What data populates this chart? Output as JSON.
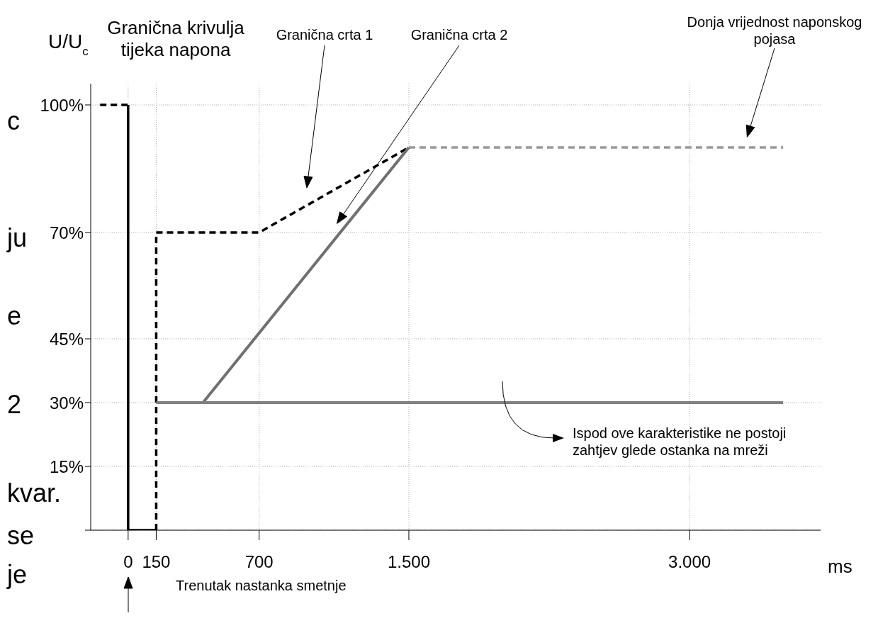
{
  "chart_data": {
    "type": "line",
    "ylabel": "U/U$_{c}$",
    "xlabel": "ms",
    "xlim": [
      -200,
      3700
    ],
    "ylim": [
      0,
      105
    ],
    "xticks": [
      0,
      150,
      700,
      {
        "value": 1500,
        "label": "1.500"
      },
      {
        "value": 3000,
        "label": "3.000"
      }
    ],
    "yticks": [
      {
        "value": 0,
        "label": null
      },
      {
        "value": 15,
        "label": "15%"
      },
      {
        "value": 30,
        "label": "30%"
      },
      {
        "value": 45,
        "label": "45%"
      },
      {
        "value": 70,
        "label": "70%"
      },
      {
        "value": 100,
        "label": "100%"
      }
    ],
    "grid": true,
    "legend": false,
    "marker": "none",
    "series": [
      {
        "x": [
          -150,
          0
        ],
        "values": [
          100,
          100
        ],
        "color": "#000000",
        "line_style": "dashed"
      },
      {
        "x": [
          0,
          0,
          150
        ],
        "values": [
          100,
          0,
          0
        ],
        "color": "#000000",
        "line_style": "solid"
      },
      {
        "x": [
          150,
          150,
          700,
          1500
        ],
        "values": [
          0,
          70,
          70,
          90
        ],
        "color": "#000000",
        "line_style": "dashed"
      },
      {
        "x": [
          1500,
          3500
        ],
        "values": [
          90,
          90
        ],
        "color": "#999999",
        "line_style": "dashed"
      },
      {
        "x": [
          400,
          1500
        ],
        "values": [
          30,
          90
        ],
        "color": "#707070",
        "line_style": "solid"
      },
      {
        "x": [
          150,
          3500
        ],
        "values": [
          30,
          30
        ],
        "color": "#808080",
        "line_style": "solid"
      }
    ],
    "annotations": [
      "Granična krivulja tijeka napona",
      "Granična crta 1",
      "Granična crta 2",
      "Donja vrijednost naponskog pojasa",
      "Ispod ove karakteristike ne postoji\nzahtjev glede ostanka na mreži",
      "Trenutak nastanka smetnje",
      "c",
      "ju",
      "e",
      "2",
      "kvar.",
      "se",
      "je"
    ]
  }
}
